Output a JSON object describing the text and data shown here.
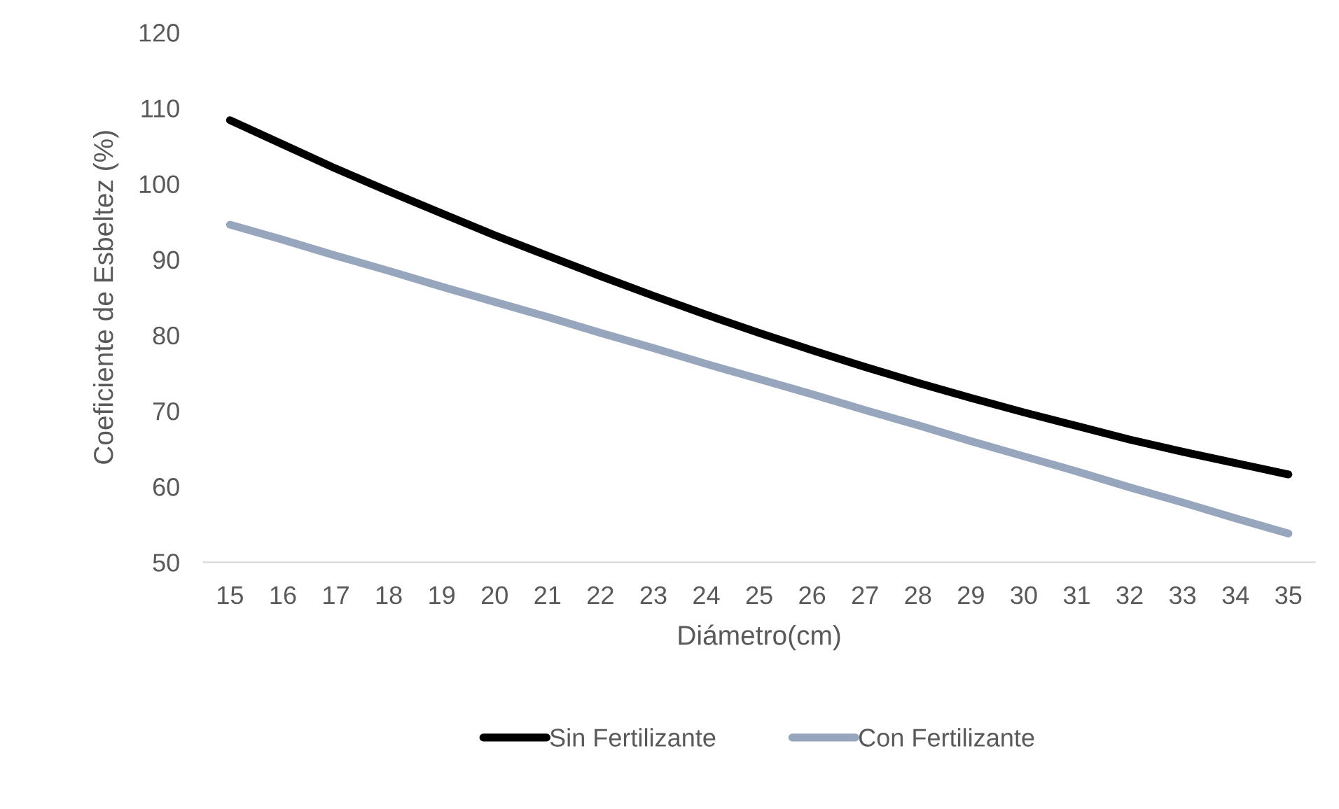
{
  "chart_data": {
    "type": "line",
    "xlabel": "Diámetro(cm)",
    "ylabel": "Coeficiente de Esbeltez (%)",
    "categories": [
      "15",
      "16",
      "17",
      "18",
      "19",
      "20",
      "21",
      "22",
      "23",
      "24",
      "25",
      "26",
      "27",
      "28",
      "29",
      "30",
      "31",
      "32",
      "33",
      "34",
      "35"
    ],
    "series": [
      {
        "name": "Sin Fertilizante",
        "color": "#000000",
        "values": [
          108.4,
          105.2,
          102.0,
          99.0,
          96.1,
          93.2,
          90.5,
          87.8,
          85.2,
          82.7,
          80.3,
          78.0,
          75.8,
          73.7,
          71.7,
          69.8,
          68.0,
          66.2,
          64.6,
          63.1,
          61.6
        ]
      },
      {
        "name": "Con Fertilizante",
        "color": "#97a6bd",
        "values": [
          94.6,
          92.6,
          90.5,
          88.5,
          86.4,
          84.4,
          82.4,
          80.3,
          78.3,
          76.2,
          74.2,
          72.2,
          70.1,
          68.1,
          66.0,
          64.0,
          62.0,
          59.9,
          57.9,
          55.8,
          53.8
        ]
      }
    ],
    "ylim": [
      50,
      120
    ],
    "yticks": [
      50,
      60,
      70,
      80,
      90,
      100,
      110,
      120
    ],
    "grid": false,
    "legend": "bottom",
    "marker": "none",
    "line_style": "solid"
  }
}
